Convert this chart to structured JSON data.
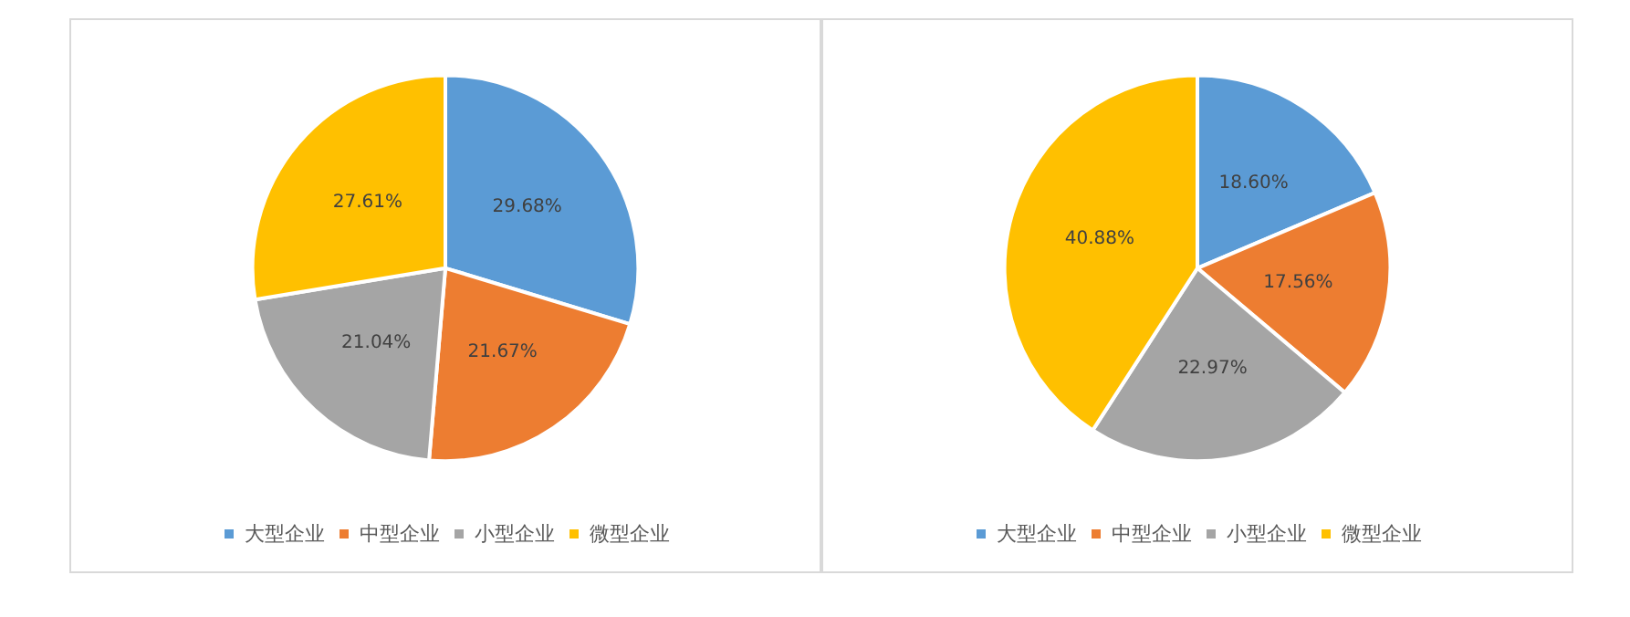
{
  "chart_data": [
    {
      "type": "pie",
      "categories": [
        "大型企业",
        "中型企业",
        "小型企业",
        "微型企业"
      ],
      "values": [
        29.68,
        21.67,
        21.04,
        27.61
      ],
      "value_labels": [
        "29.68%",
        "21.67%",
        "21.04%",
        "27.61%"
      ],
      "colors": [
        "#5b9bd5",
        "#ed7d31",
        "#a5a5a5",
        "#ffc000"
      ],
      "legend": "bottom"
    },
    {
      "type": "pie",
      "categories": [
        "大型企业",
        "中型企业",
        "小型企业",
        "微型企业"
      ],
      "values": [
        18.6,
        17.56,
        22.97,
        40.88
      ],
      "value_labels": [
        "18.60%",
        "17.56%",
        "22.97%",
        "40.88%"
      ],
      "colors": [
        "#5b9bd5",
        "#ed7d31",
        "#a5a5a5",
        "#ffc000"
      ],
      "legend": "bottom"
    }
  ]
}
